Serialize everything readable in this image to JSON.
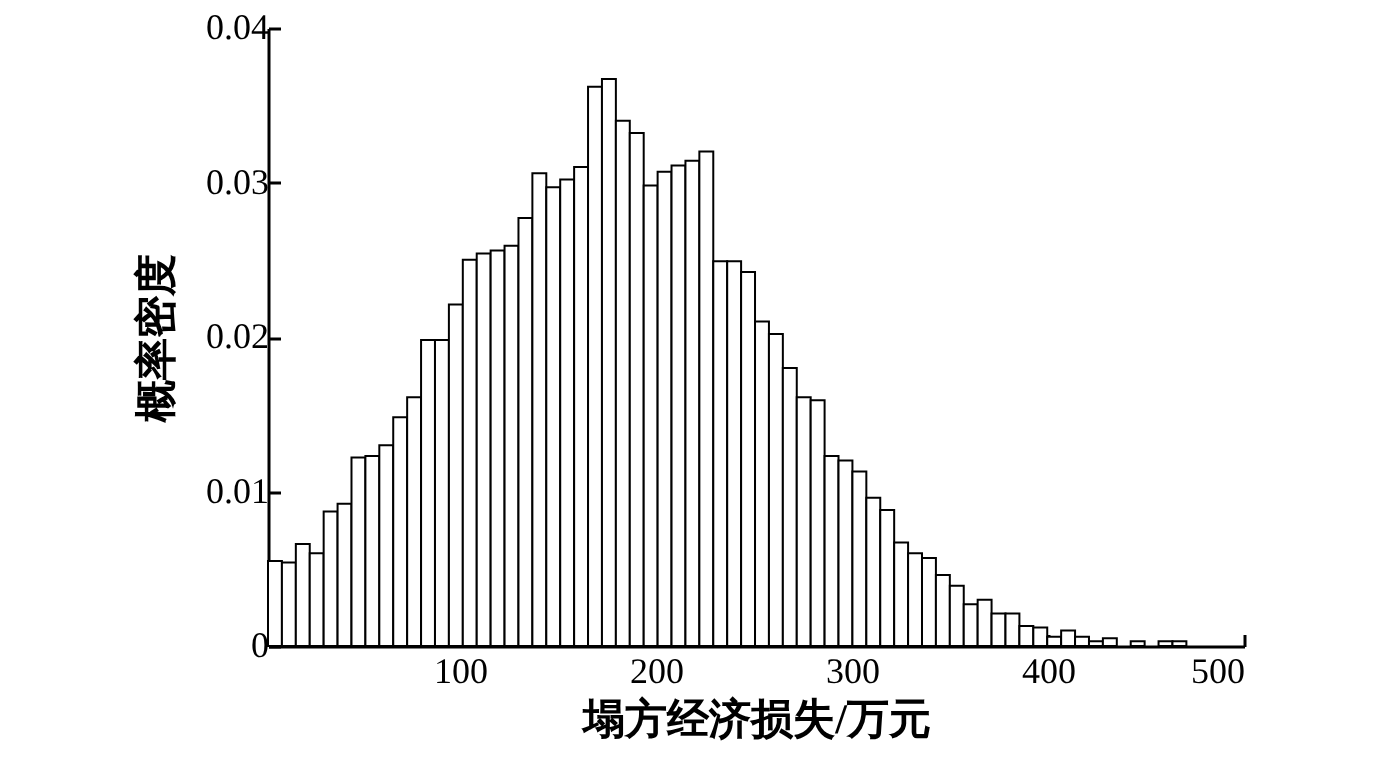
{
  "chart_data": {
    "type": "histogram",
    "xlabel": "塌方经济损失/万元",
    "ylabel": "概率密度",
    "bins": [
      2.0,
      9.1,
      16.2,
      23.3,
      30.4,
      37.5,
      44.6,
      51.7,
      58.8,
      65.9,
      73.0,
      80.1,
      87.2,
      94.3,
      101.4,
      108.5,
      115.6,
      122.7,
      129.8,
      136.9,
      144.0,
      151.1,
      158.2,
      165.3,
      172.4,
      179.5,
      186.6,
      193.7,
      200.8,
      207.9,
      215.0,
      222.1,
      229.2,
      236.3,
      243.4,
      250.5,
      257.6,
      264.7,
      271.8,
      278.9,
      286.0,
      293.1,
      300.2,
      307.3,
      314.4,
      321.5,
      328.6,
      335.7,
      342.8,
      349.9,
      357.0,
      364.1,
      371.2,
      378.3,
      385.4,
      392.5,
      399.6,
      406.7,
      413.8,
      420.9,
      428.0,
      435.1,
      442.2,
      449.3,
      456.4,
      463.5,
      470.6
    ],
    "values": [
      0.0055,
      0.0054,
      0.0066,
      0.006,
      0.0087,
      0.0092,
      0.0122,
      0.0123,
      0.013,
      0.0148,
      0.0161,
      0.0198,
      0.0198,
      0.0221,
      0.025,
      0.0254,
      0.0256,
      0.0259,
      0.0277,
      0.0306,
      0.0297,
      0.0302,
      0.031,
      0.0362,
      0.0367,
      0.034,
      0.0332,
      0.0298,
      0.0307,
      0.0311,
      0.0314,
      0.032,
      0.0249,
      0.0249,
      0.0242,
      0.021,
      0.0202,
      0.018,
      0.0161,
      0.0159,
      0.0123,
      0.012,
      0.0113,
      0.0096,
      0.0088,
      0.0067,
      0.006,
      0.0057,
      0.0046,
      0.0039,
      0.0027,
      0.003,
      0.0021,
      0.0021,
      0.0013,
      0.0012,
      0.0006,
      0.001,
      0.0006,
      0.0003,
      0.0005,
      0,
      0.0003,
      0,
      0.0003,
      0.0003
    ],
    "color": "#ffffff",
    "xlim": [
      2,
      500
    ],
    "xticks": [
      100,
      200,
      300,
      400,
      500
    ],
    "ylim": [
      0,
      0.04
    ],
    "yticks": [
      0,
      0.01,
      0.02,
      0.03,
      0.04
    ]
  }
}
